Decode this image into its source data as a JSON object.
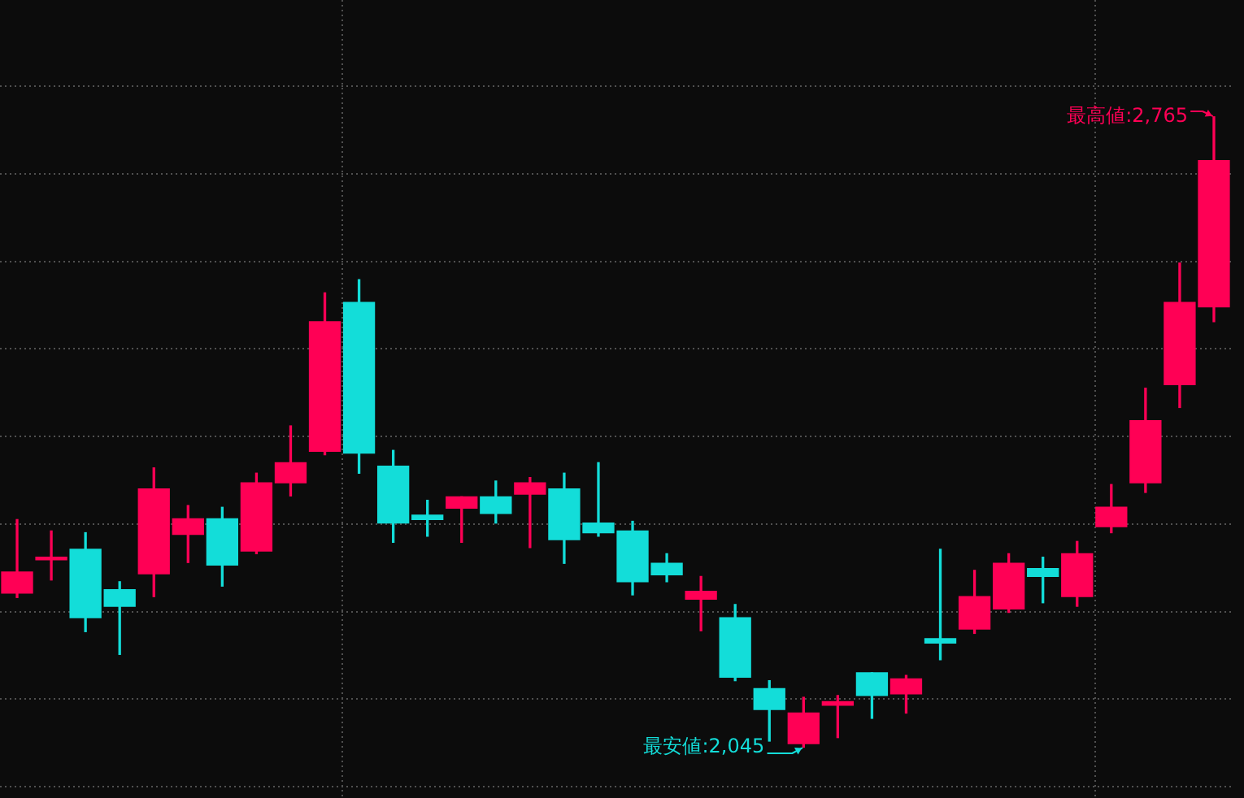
{
  "chart_data": {
    "type": "candlestick",
    "categories": [
      null,
      null,
      null,
      null,
      null,
      null,
      null,
      null,
      null,
      null,
      null,
      null,
      null,
      null,
      null,
      null,
      null,
      null,
      null,
      null,
      null,
      null,
      null,
      null,
      null,
      null,
      null,
      null,
      null,
      null,
      null,
      null,
      null,
      null,
      null,
      null
    ],
    "ohlc": [
      [
        2221,
        2305,
        2216,
        2245
      ],
      [
        2259,
        2292,
        2236,
        2262
      ],
      [
        2271,
        2290,
        2177,
        2193
      ],
      [
        2225,
        2234,
        2151,
        2206
      ],
      [
        2243,
        2364,
        2217,
        2340
      ],
      [
        2288,
        2321,
        2256,
        2306
      ],
      [
        2306,
        2319,
        2229,
        2253
      ],
      [
        2269,
        2358,
        2266,
        2347
      ],
      [
        2347,
        2412,
        2332,
        2370
      ],
      [
        2383,
        2564,
        2379,
        2531
      ],
      [
        2553,
        2579,
        2358,
        2381
      ],
      [
        2366,
        2384,
        2279,
        2301
      ],
      [
        2310,
        2327,
        2286,
        2305
      ],
      [
        2318,
        2331,
        2279,
        2331
      ],
      [
        2331,
        2349,
        2301,
        2312
      ],
      [
        2334,
        2353,
        2273,
        2347
      ],
      [
        2340,
        2358,
        2255,
        2282
      ],
      [
        2301,
        2370,
        2286,
        2290
      ],
      [
        2292,
        2303,
        2219,
        2234
      ],
      [
        2255,
        2266,
        2234,
        2242
      ],
      [
        2214,
        2240,
        2178,
        2223
      ],
      [
        2193,
        2208,
        2121,
        2125
      ],
      [
        2112,
        2121,
        2052,
        2088
      ],
      [
        2049,
        2102,
        2045,
        2084
      ],
      [
        2093,
        2104,
        2056,
        2097
      ],
      [
        2130,
        2130,
        2078,
        2104
      ],
      [
        2106,
        2127,
        2084,
        2123
      ],
      [
        2169,
        2271,
        2145,
        2164
      ],
      [
        2180,
        2247,
        2175,
        2217
      ],
      [
        2203,
        2266,
        2199,
        2255
      ],
      [
        2249,
        2262,
        2210,
        2240
      ],
      [
        2217,
        2280,
        2206,
        2266
      ],
      [
        2297,
        2345,
        2290,
        2319
      ],
      [
        2347,
        2455,
        2336,
        2418
      ],
      [
        2459,
        2598,
        2433,
        2553
      ],
      [
        2548,
        2765,
        2531,
        2715
      ]
    ],
    "colors": [
      "#ff0055",
      "#ff0055",
      "#13ddd9",
      "#13ddd9",
      "#ff0055",
      "#ff0055",
      "#13ddd9",
      "#ff0055",
      "#ff0055",
      "#ff0055",
      "#13ddd9",
      "#13ddd9",
      "#13ddd9",
      "#ff0055",
      "#13ddd9",
      "#ff0055",
      "#13ddd9",
      "#13ddd9",
      "#13ddd9",
      "#13ddd9",
      "#ff0055",
      "#13ddd9",
      "#13ddd9",
      "#ff0055",
      "#ff0055",
      "#13ddd9",
      "#ff0055",
      "#13ddd9",
      "#ff0055",
      "#ff0055",
      "#13ddd9",
      "#ff0055",
      "#ff0055",
      "#ff0055",
      "#ff0055",
      "#ff0055"
    ],
    "yticks": [
      {
        "value": 2000,
        "label": null
      },
      {
        "value": 2100,
        "label": null
      },
      {
        "value": 2200,
        "label": null
      },
      {
        "value": 2300,
        "label": null
      },
      {
        "value": 2400,
        "label": null
      },
      {
        "value": 2500,
        "label": null
      },
      {
        "value": 2600,
        "label": null
      },
      {
        "value": 2700,
        "label": null
      },
      {
        "value": 2800,
        "label": null
      }
    ],
    "grid": "y",
    "tick_labels": false,
    "annotations": [
      "最高値:2,765",
      "最安値:2,045"
    ]
  }
}
